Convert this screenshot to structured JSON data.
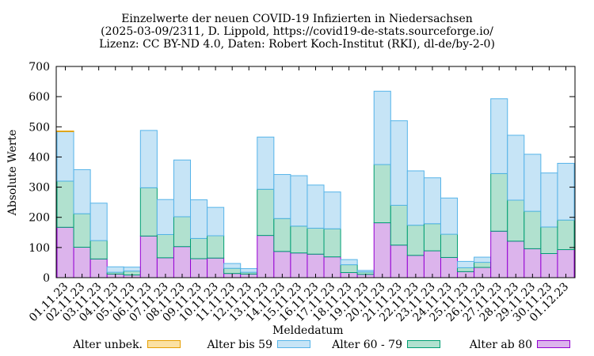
{
  "title": {
    "line1": "Einzelwerte der neuen COVID-19 Infizierten in Niedersachsen",
    "line2": "(2025-03-09/2311, D. Lippold, https://covid19-de-stats.sourceforge.io/",
    "line3": "Lizenz: CC BY-ND 4.0, Daten: Robert Koch-Institut (RKI), dl-de/by-2-0)"
  },
  "chart_data": {
    "type": "bar",
    "stacked": true,
    "title": "Einzelwerte der neuen COVID-19 Infizierten in Niedersachsen",
    "xlabel": "Meldedatum",
    "ylabel": "Absolute Werte",
    "ylim": [
      0,
      700
    ],
    "yticks": [
      0,
      100,
      200,
      300,
      400,
      500,
      600,
      700
    ],
    "grid": false,
    "legend_position": "bottom",
    "categories": [
      "01.11.23",
      "02.11.23",
      "03.11.23",
      "04.11.23",
      "05.11.23",
      "06.11.23",
      "07.11.23",
      "08.11.23",
      "09.11.23",
      "10.11.23",
      "11.11.23",
      "12.11.23",
      "13.11.23",
      "14.11.23",
      "15.11.23",
      "16.11.23",
      "17.11.23",
      "18.11.23",
      "19.11.23",
      "20.11.23",
      "21.11.23",
      "22.11.23",
      "23.11.23",
      "24.11.23",
      "25.11.23",
      "26.11.23",
      "27.11.23",
      "28.11.23",
      "29.11.23",
      "30.11.23",
      "01.12.23"
    ],
    "series": [
      {
        "name": "Alter ab 80",
        "fill": "#dcb4ec",
        "stroke": "#9400d3",
        "values": [
          167,
          101,
          62,
          12,
          9,
          138,
          66,
          103,
          63,
          65,
          14,
          12,
          140,
          87,
          82,
          78,
          69,
          17,
          11,
          182,
          108,
          74,
          89,
          67,
          20,
          34,
          154,
          121,
          96,
          80,
          93
        ]
      },
      {
        "name": "Alter 60 - 79",
        "fill": "#b1e1cf",
        "stroke": "#009e73",
        "values": [
          153,
          111,
          61,
          6,
          13,
          160,
          77,
          99,
          67,
          74,
          17,
          6,
          153,
          109,
          89,
          86,
          93,
          26,
          8,
          193,
          132,
          100,
          90,
          77,
          13,
          17,
          191,
          136,
          124,
          88,
          98
        ]
      },
      {
        "name": "Alter bis 59",
        "fill": "#c6e4f6",
        "stroke": "#56b4e9",
        "values": [
          164,
          146,
          124,
          18,
          13,
          190,
          116,
          188,
          128,
          94,
          16,
          12,
          173,
          146,
          167,
          143,
          122,
          17,
          5,
          243,
          280,
          180,
          152,
          120,
          21,
          17,
          248,
          215,
          189,
          179,
          188
        ]
      },
      {
        "name": "Alter unbek.",
        "fill": "#fbe1a3",
        "stroke": "#e69f00",
        "values": [
          2,
          0,
          0,
          0,
          0,
          0,
          0,
          0,
          0,
          0,
          0,
          0,
          0,
          0,
          0,
          0,
          0,
          0,
          0,
          0,
          0,
          0,
          0,
          0,
          0,
          0,
          0,
          0,
          0,
          0,
          0
        ]
      }
    ]
  },
  "legend": [
    {
      "label": "Alter unbek.",
      "fill": "#fbe1a3",
      "stroke": "#e69f00"
    },
    {
      "label": "Alter bis 59",
      "fill": "#c6e4f6",
      "stroke": "#56b4e9"
    },
    {
      "label": "Alter 60 - 79",
      "fill": "#b1e1cf",
      "stroke": "#009e73"
    },
    {
      "label": "Alter ab 80",
      "fill": "#dcb4ec",
      "stroke": "#9400d3"
    }
  ]
}
